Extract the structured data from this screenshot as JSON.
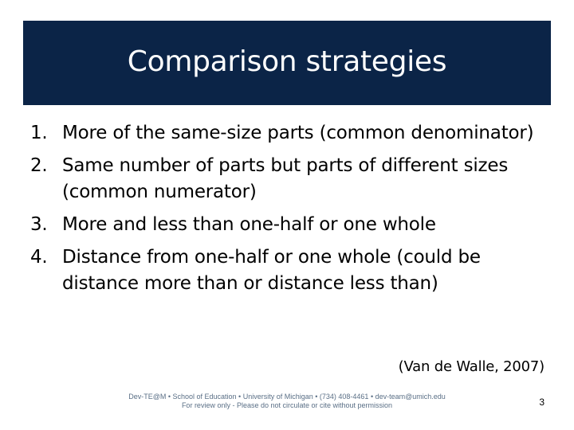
{
  "slide": {
    "title": "Comparison strategies",
    "items": [
      {
        "number": "1.",
        "text": "More of the same-size parts (common denominator)"
      },
      {
        "number": "2.",
        "text": "Same number of parts but parts of different sizes (common numerator)"
      },
      {
        "number": "3.",
        "text": "More and less than one-half or one whole"
      },
      {
        "number": "4.",
        "text": "Distance from one-half or one whole (could be distance more than or distance less than)"
      }
    ],
    "citation": "(Van de Walle, 2007)",
    "footer_line1": "Dev-TE@M • School of Education • University of Michigan • (734) 408-4461 • dev-team@umich.edu",
    "footer_line2": "For review only - Please do not circulate or cite without permission",
    "page_number": "3"
  },
  "colors": {
    "title_band": "#0b2447",
    "title_text": "#ffffff",
    "footer_text": "#5a6f86"
  }
}
